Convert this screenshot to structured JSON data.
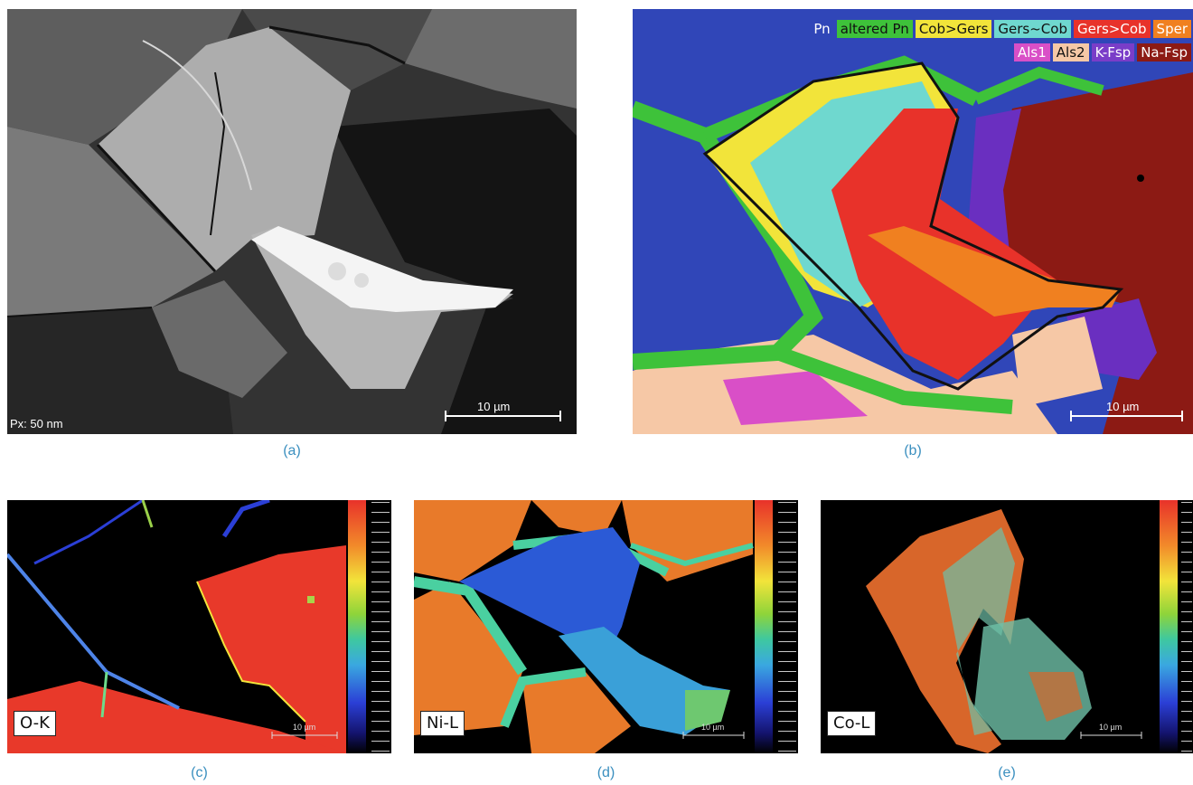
{
  "panels": {
    "a": {
      "caption": "(a)",
      "pixel_size_label": "Px: 50 nm",
      "scale_bar_label": "10 µm"
    },
    "b": {
      "caption": "(b)",
      "scale_bar_label": "10 µm",
      "legend_row1": [
        {
          "label": "Pn",
          "bg": "#3046b8",
          "fg": "#ffffff"
        },
        {
          "label": "altered Pn",
          "bg": "#3ec23a",
          "fg": "#111111"
        },
        {
          "label": "Cob>Gers",
          "bg": "#f2e43a",
          "fg": "#111111"
        },
        {
          "label": "Gers~Cob",
          "bg": "#6fd8cf",
          "fg": "#111111"
        },
        {
          "label": "Gers>Cob",
          "bg": "#e8322a",
          "fg": "#ffffff"
        },
        {
          "label": "Sper",
          "bg": "#f08020",
          "fg": "#ffffff"
        }
      ],
      "legend_row2": [
        {
          "label": "Als1",
          "bg": "#d94fc7",
          "fg": "#ffffff"
        },
        {
          "label": "Als2",
          "bg": "#f6c8a6",
          "fg": "#111111"
        },
        {
          "label": "K-Fsp",
          "bg": "#7a3dc8",
          "fg": "#ffffff"
        },
        {
          "label": "Na-Fsp",
          "bg": "#8c1a14",
          "fg": "#ffffff"
        }
      ]
    },
    "c": {
      "caption": "(c)",
      "element_label": "O-K",
      "scale_bar_label": "10 µm"
    },
    "d": {
      "caption": "(d)",
      "element_label": "Ni-L",
      "scale_bar_label": "10 µm"
    },
    "e": {
      "caption": "(e)",
      "element_label": "Co-L",
      "scale_bar_label": "10 µm"
    }
  }
}
